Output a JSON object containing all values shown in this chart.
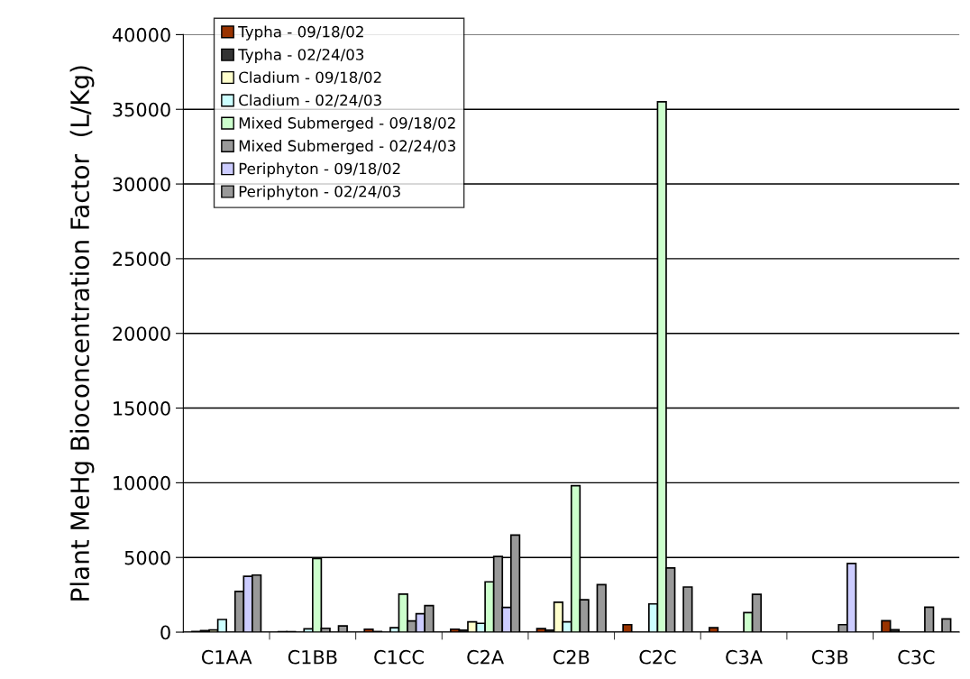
{
  "chart_data": {
    "type": "bar",
    "ylabel": "Plant MeHg Bioconcentration Factor  (L/Kg)",
    "categories": [
      "C1AA",
      "C1BB",
      "C1CC",
      "C2A",
      "C2B",
      "C2C",
      "C3A",
      "C3B",
      "C3C"
    ],
    "ylim": [
      0,
      40000
    ],
    "yticks": [
      0,
      5000,
      10000,
      15000,
      20000,
      25000,
      30000,
      35000,
      40000
    ],
    "grid": "y",
    "legend": "top left",
    "series": [
      {
        "name": "Typha - 09/18/02",
        "color": "#993300",
        "values": [
          50,
          30,
          200,
          200,
          240,
          500,
          300,
          null,
          760
        ]
      },
      {
        "name": "Typha - 02/24/03",
        "color": "#333333",
        "values": [
          100,
          30,
          40,
          140,
          140,
          null,
          null,
          null,
          160
        ]
      },
      {
        "name": "Cladium - 09/18/02",
        "color": "#ffffcc",
        "values": [
          150,
          null,
          null,
          690,
          2000,
          null,
          null,
          null,
          null
        ]
      },
      {
        "name": "Cladium - 02/24/03",
        "color": "#ccffff",
        "values": [
          850,
          220,
          300,
          590,
          690,
          1890,
          null,
          null,
          null
        ]
      },
      {
        "name": "Mixed Submerged - 09/18/02",
        "color": "#ccffcc",
        "values": [
          null,
          4930,
          2550,
          3370,
          9800,
          35500,
          1310,
          null,
          null
        ]
      },
      {
        "name": "Mixed Submerged - 02/24/03",
        "color": "#999999",
        "values": [
          2730,
          260,
          750,
          5070,
          2170,
          4300,
          2530,
          500,
          1670
        ]
      },
      {
        "name": "Periphyton - 09/18/02",
        "color": "#ccccff",
        "values": [
          3740,
          null,
          1230,
          1660,
          null,
          null,
          null,
          4600,
          null
        ]
      },
      {
        "name": "Periphyton - 02/24/03",
        "color": "#999999",
        "values": [
          3820,
          420,
          1780,
          6500,
          3180,
          3020,
          null,
          null,
          890
        ]
      }
    ]
  }
}
